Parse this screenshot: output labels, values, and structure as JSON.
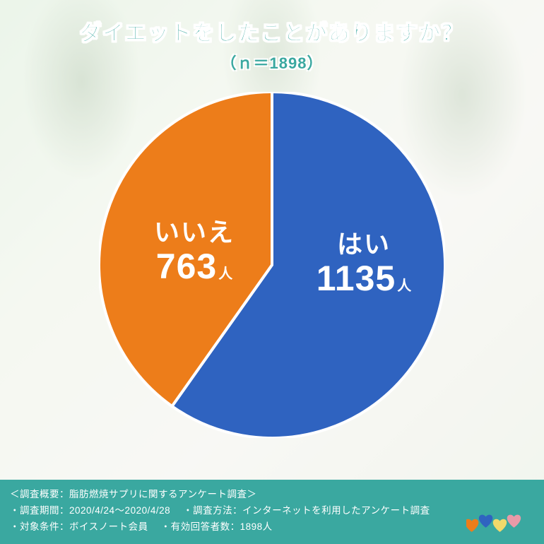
{
  "title": "ダイエットをしたことがありますか？",
  "subtitle": "（ｎ＝1898）",
  "chart": {
    "type": "pie",
    "radius": 245,
    "stroke": "#ffffff",
    "stroke_width": 4,
    "start_angle_deg": 0,
    "slices": [
      {
        "key": "yes",
        "label": "はい",
        "value": 1135,
        "unit": "人",
        "color": "#2f63c0"
      },
      {
        "key": "no",
        "label": "いいえ",
        "value": 763,
        "unit": "人",
        "color": "#ed7d1a"
      }
    ],
    "label_text_color": "#ffffff",
    "answer_fontsize": 36,
    "number_fontsize": 50,
    "unit_fontsize": 20
  },
  "title_style": {
    "color": "#3aa8a0",
    "outline": "#ffffff",
    "fontsize": 30,
    "subtitle_fontsize": 22
  },
  "footer": {
    "background": "#3aa8a0",
    "text_color": "#ffffff",
    "fontsize": 13.5,
    "line1": "＜調査概要：脂肪燃焼サプリに関するアンケート調査＞",
    "line2a": "・調査期間：2020/4/24～2020/4/28",
    "line2b": "・調査方法：インターネットを利用したアンケート調査",
    "line3a": "・対象条件：ボイスノート会員",
    "line3b": "・有効回答者数：1898人"
  },
  "logo": {
    "hearts": [
      {
        "color": "#ed7d1a"
      },
      {
        "color": "#2f63c0"
      },
      {
        "color": "#f2d96b"
      },
      {
        "color": "#e89aa8"
      }
    ]
  },
  "background": {
    "base": "#e8f0e0",
    "overlay_opacity": 0.55
  }
}
